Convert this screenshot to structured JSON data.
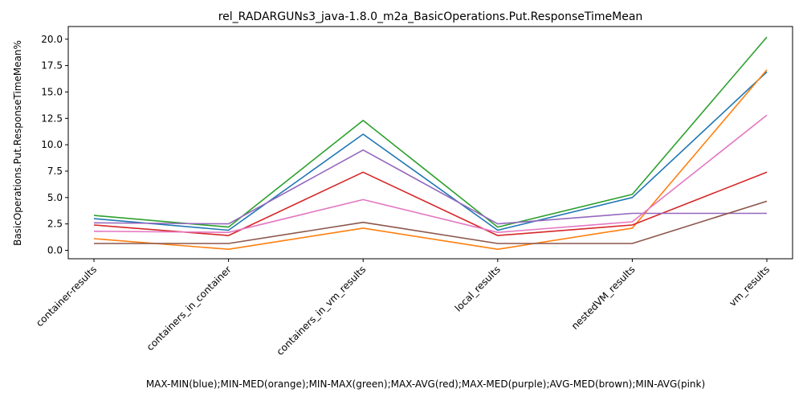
{
  "chart_data": {
    "type": "line",
    "title": "rel_RADARGUNs3_java-1.8.0_m2a_BasicOperations.Put.ResponseTimeMean",
    "xlabel": "MAX-MIN(blue);MIN-MED(orange);MIN-MAX(green);MAX-AVG(red);MAX-MED(purple);AVG-MED(brown);MIN-AVG(pink)",
    "ylabel": "BasicOperations.Put.ResponseTimeMean%",
    "categories": [
      "container-results",
      "containers_in_container",
      "containers_in_vm_results",
      "local_results",
      "nestedVM_results",
      "vm_results"
    ],
    "ylim": [
      -0.8,
      21.2
    ],
    "yticks": [
      "0.0",
      "2.5",
      "5.0",
      "7.5",
      "10.0",
      "12.5",
      "15.0",
      "17.5",
      "20.0"
    ],
    "grid": false,
    "series": [
      {
        "color": "#1f77b4",
        "values": [
          3.0,
          1.9,
          11.0,
          1.9,
          5.0,
          16.9
        ]
      },
      {
        "color": "#ff7f0e",
        "values": [
          1.1,
          0.1,
          2.1,
          0.1,
          2.1,
          17.1
        ]
      },
      {
        "color": "#2ca02c",
        "values": [
          3.3,
          2.2,
          12.3,
          2.2,
          5.3,
          20.2
        ]
      },
      {
        "color": "#d62728",
        "values": [
          2.4,
          1.4,
          7.4,
          1.4,
          2.4,
          7.4
        ]
      },
      {
        "color": "#9467bd",
        "values": [
          2.6,
          2.5,
          9.5,
          2.5,
          3.5,
          3.5
        ]
      },
      {
        "color": "#8c564b",
        "values": [
          0.65,
          0.65,
          2.65,
          0.65,
          0.65,
          4.65
        ]
      },
      {
        "color": "#e377c2",
        "values": [
          1.8,
          1.7,
          4.8,
          1.7,
          2.7,
          12.8
        ]
      }
    ]
  }
}
